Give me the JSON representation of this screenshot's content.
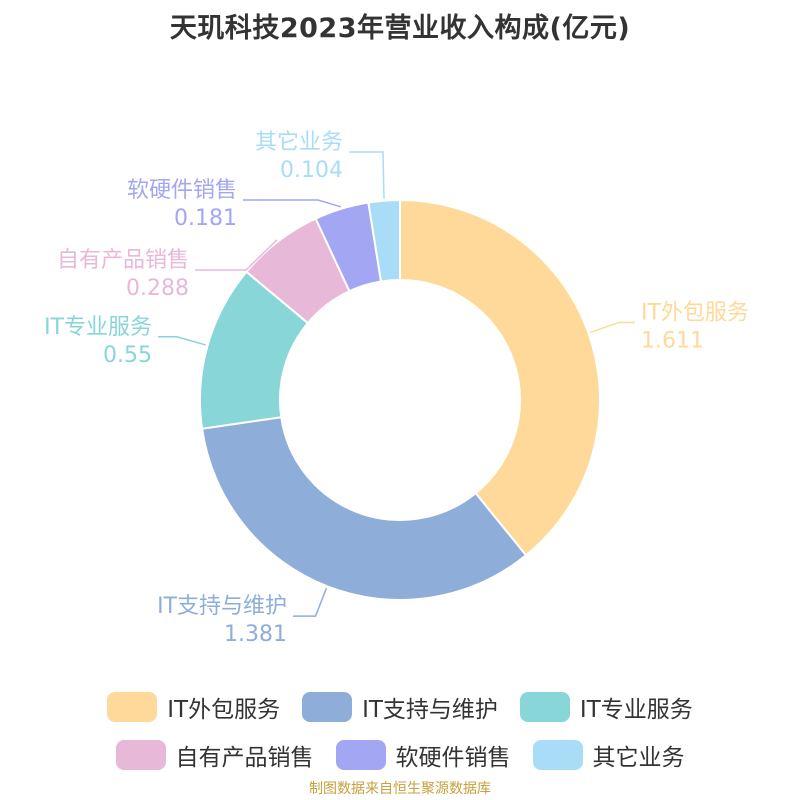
{
  "title": "天玑科技2023年营业收入构成(亿元)",
  "source_note": "制图数据来自恒生聚源数据库",
  "chart_data": {
    "type": "pie",
    "donut": true,
    "title": "天玑科技2023年营业收入构成(亿元)",
    "series": [
      {
        "name": "IT外包服务",
        "value": 1.611,
        "label": "1.611",
        "color": "#FFD99A"
      },
      {
        "name": "IT支持与维护",
        "value": 1.381,
        "label": "1.381",
        "color": "#8EAED9"
      },
      {
        "name": "IT专业服务",
        "value": 0.55,
        "label": "0.55",
        "color": "#88D6D8"
      },
      {
        "name": "自有产品销售",
        "value": 0.288,
        "label": "0.288",
        "color": "#E8B8D8"
      },
      {
        "name": "软硬件销售",
        "value": 0.181,
        "label": "0.181",
        "color": "#A3A6F2"
      },
      {
        "name": "其它业务",
        "value": 0.104,
        "label": "0.104",
        "color": "#A9DDF7"
      }
    ],
    "legend": "bottom"
  }
}
